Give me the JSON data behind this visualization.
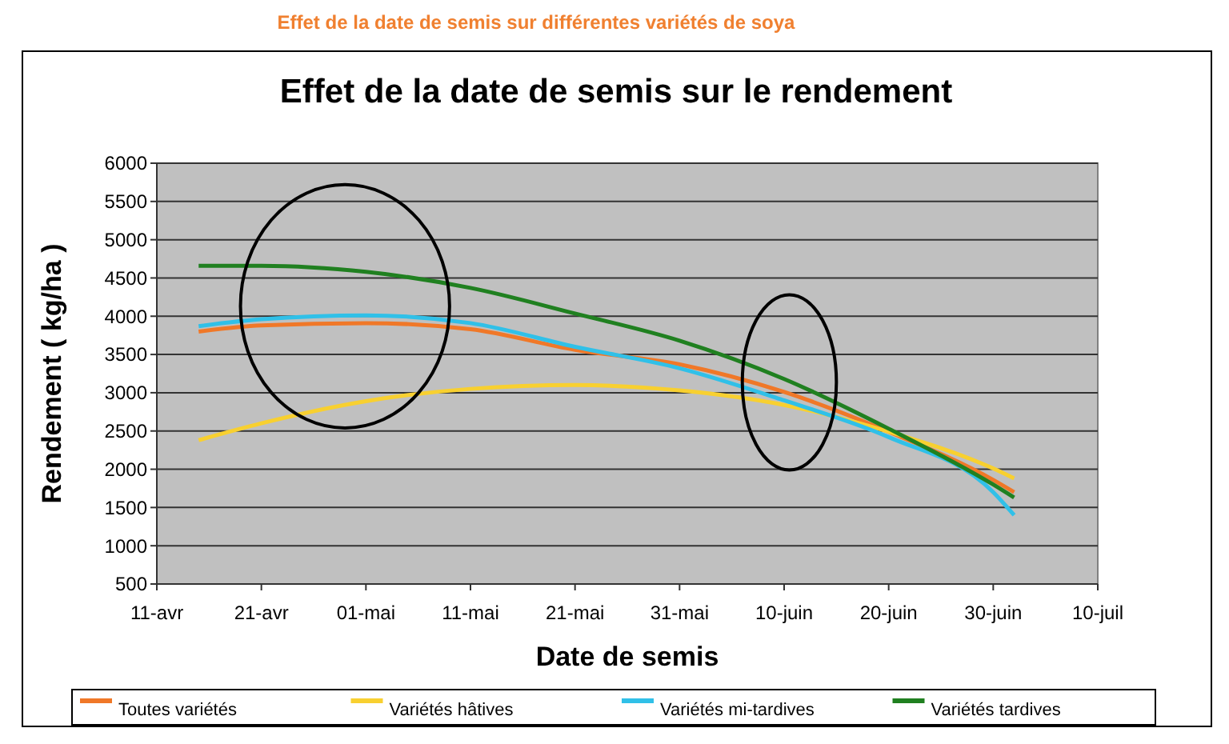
{
  "chart_data": {
    "type": "line",
    "title": "Effet de la date de semis sur différentes variétés de soya",
    "subtitle": "Effet de la date de semis sur le rendement",
    "xlabel": "Date de semis",
    "ylabel": "Rendement ( kg/ha )",
    "x": [
      "--04-15",
      "--04-21",
      "--05-01",
      "--05-11",
      "--05-21",
      "--05-31",
      "--06-10",
      "--06-20",
      "--06-30",
      "--07-02"
    ],
    "series": [
      {
        "name": "Toutes variétés",
        "color": "#f07828",
        "values": [
          3800,
          3880,
          3910,
          3830,
          3560,
          3370,
          3010,
          2490,
          1860,
          1700
        ]
      },
      {
        "name": "Variétés hâtives",
        "color": "#f8d030",
        "values": [
          2380,
          2600,
          2890,
          3050,
          3100,
          3030,
          2840,
          2490,
          2010,
          1880
        ]
      },
      {
        "name": "Variétés mi-tardives",
        "color": "#30c0e8",
        "values": [
          3870,
          3960,
          4010,
          3910,
          3600,
          3320,
          2900,
          2420,
          1700,
          1400
        ]
      },
      {
        "name": "Variétés tardives",
        "color": "#208020",
        "values": [
          4660,
          4660,
          4580,
          4370,
          4035,
          3680,
          3180,
          2530,
          1800,
          1630
        ]
      }
    ],
    "xlim": [
      "--04-11",
      "--07-10"
    ],
    "xticks": [
      {
        "value": "--04-11",
        "label": "11-avr"
      },
      {
        "value": "--04-21",
        "label": "21-avr"
      },
      {
        "value": "--05-01",
        "label": "01-mai"
      },
      {
        "value": "--05-11",
        "label": "11-mai"
      },
      {
        "value": "--05-21",
        "label": "21-mai"
      },
      {
        "value": "--05-31",
        "label": "31-mai"
      },
      {
        "value": "--06-10",
        "label": "10-juin"
      },
      {
        "value": "--06-20",
        "label": "20-juin"
      },
      {
        "value": "--06-30",
        "label": "30-juin"
      },
      {
        "value": "--07-10",
        "label": "10-juil"
      }
    ],
    "ylim": [
      500,
      6000
    ],
    "yticks": [
      500,
      1000,
      1500,
      2000,
      2500,
      3000,
      3500,
      4000,
      4500,
      5000,
      5500,
      6000
    ],
    "grid": "y",
    "legend": "bottom",
    "marker": "none",
    "line_style": "solid"
  }
}
